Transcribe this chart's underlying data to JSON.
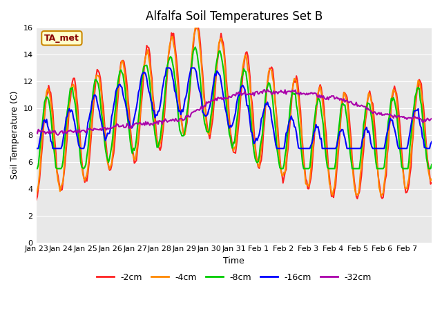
{
  "title": "Alfalfa Soil Temperatures Set B",
  "xlabel": "Time",
  "ylabel": "Soil Temperature (C)",
  "ylim": [
    0,
    16
  ],
  "yticks": [
    0,
    2,
    4,
    6,
    8,
    10,
    12,
    14,
    16
  ],
  "bg_color": "#e8e8e8",
  "fig_color": "#ffffff",
  "annotation_text": "TA_met",
  "annotation_bg": "#ffffcc",
  "annotation_border": "#cc8800",
  "annotation_text_color": "#880000",
  "x_labels": [
    "Jan 23",
    "Jan 24",
    "Jan 25",
    "Jan 26",
    "Jan 27",
    "Jan 28",
    "Jan 29",
    "Jan 30",
    "Jan 31",
    "Feb 1",
    "Feb 2",
    "Feb 3",
    "Feb 4",
    "Feb 5",
    "Feb 6",
    "Feb 7"
  ],
  "colors": {
    "2cm": "#ff2222",
    "4cm": "#ff8800",
    "8cm": "#00cc00",
    "16cm": "#0000ff",
    "32cm": "#aa00aa"
  },
  "legend_labels": [
    "-2cm",
    "-4cm",
    "-8cm",
    "-16cm",
    "-32cm"
  ],
  "line_width": 1.5
}
